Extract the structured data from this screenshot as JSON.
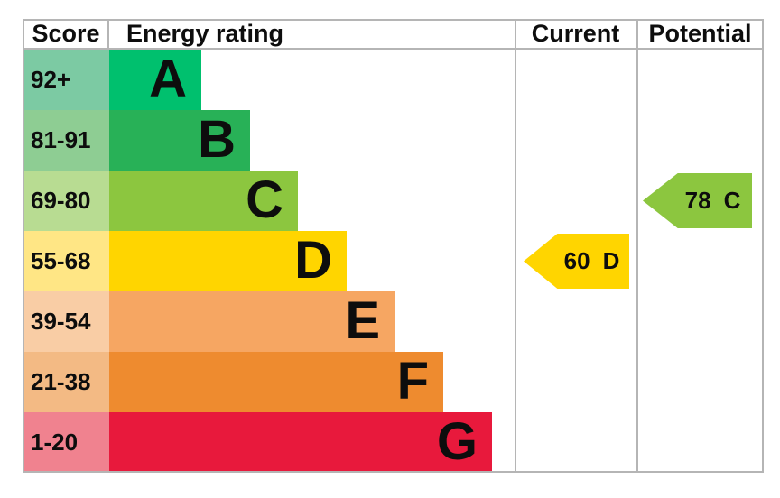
{
  "header": {
    "score": "Score",
    "energy_rating": "Energy rating",
    "current": "Current",
    "potential": "Potential"
  },
  "bands": [
    {
      "letter": "A",
      "score": "92+",
      "band_color": "#00c06e",
      "score_color": "#7ccaa3"
    },
    {
      "letter": "B",
      "score": "81-91",
      "band_color": "#28b157",
      "score_color": "#8ecd93"
    },
    {
      "letter": "C",
      "score": "69-80",
      "band_color": "#8cc63f",
      "score_color": "#b8dc92"
    },
    {
      "letter": "D",
      "score": "55-68",
      "band_color": "#ffd500",
      "score_color": "#ffe685"
    },
    {
      "letter": "E",
      "score": "39-54",
      "band_color": "#f6a662",
      "score_color": "#f9cda5"
    },
    {
      "letter": "F",
      "score": "21-38",
      "band_color": "#ee8b2f",
      "score_color": "#f3ba84"
    },
    {
      "letter": "G",
      "score": "1-20",
      "band_color": "#e8193c",
      "score_color": "#f0828f"
    }
  ],
  "current_marker": {
    "value": "60",
    "letter": "D",
    "color": "#ffd500",
    "band_index": 3
  },
  "potential_marker": {
    "value": "78",
    "letter": "C",
    "color": "#8cc63f",
    "band_index": 2
  },
  "colors": {
    "grid_line": "#b5b5b5",
    "text": "#0d0d0d",
    "background": "#ffffff"
  },
  "chart_data": {
    "type": "bar",
    "title": "Energy rating (EPC)",
    "categories": [
      "A",
      "B",
      "C",
      "D",
      "E",
      "F",
      "G"
    ],
    "score_ranges": [
      "92+",
      "81-91",
      "69-80",
      "55-68",
      "39-54",
      "21-38",
      "1-20"
    ],
    "bar_lengths_relative": [
      1,
      1.53,
      2.05,
      2.58,
      3.1,
      3.63,
      4.16
    ],
    "band_colors": [
      "#00c06e",
      "#28b157",
      "#8cc63f",
      "#ffd500",
      "#f6a662",
      "#ee8b2f",
      "#e8193c"
    ],
    "current": {
      "value": 60,
      "band": "D"
    },
    "potential": {
      "value": 78,
      "band": "C"
    },
    "columns": [
      "Score",
      "Energy rating",
      "Current",
      "Potential"
    ],
    "legend_position": "none",
    "grid": "column-dividers-only"
  }
}
